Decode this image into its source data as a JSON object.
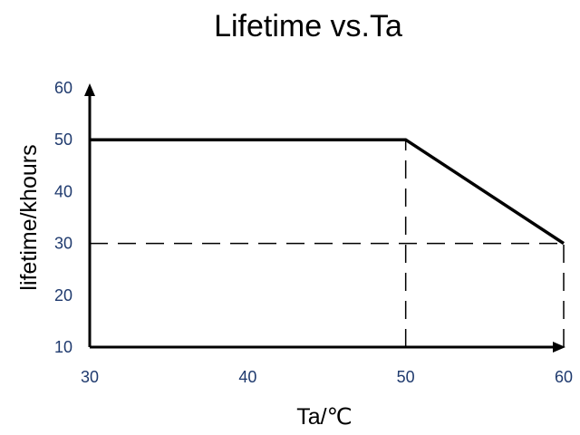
{
  "chart_data": {
    "type": "line",
    "title": "Lifetime vs.Ta",
    "xlabel": "Ta/℃",
    "ylabel": "lifetime/khours",
    "xlim": [
      30,
      60
    ],
    "ylim": [
      10,
      60
    ],
    "x_ticks": [
      "30",
      "40",
      "50",
      "60"
    ],
    "y_ticks": [
      "10",
      "20",
      "30",
      "40",
      "50",
      "60"
    ],
    "grid": false,
    "series": [
      {
        "x": [
          30,
          50,
          60
        ],
        "y": [
          50,
          50,
          30
        ]
      }
    ],
    "reference_lines": [
      {
        "x": [
          50,
          50
        ],
        "y": [
          10,
          50
        ]
      },
      {
        "x": [
          30,
          60
        ],
        "y": [
          30,
          30
        ]
      },
      {
        "x": [
          60,
          60
        ],
        "y": [
          10,
          30
        ]
      }
    ],
    "colors": {
      "line": "#000000",
      "tick_label": "#1f3a6e"
    }
  }
}
